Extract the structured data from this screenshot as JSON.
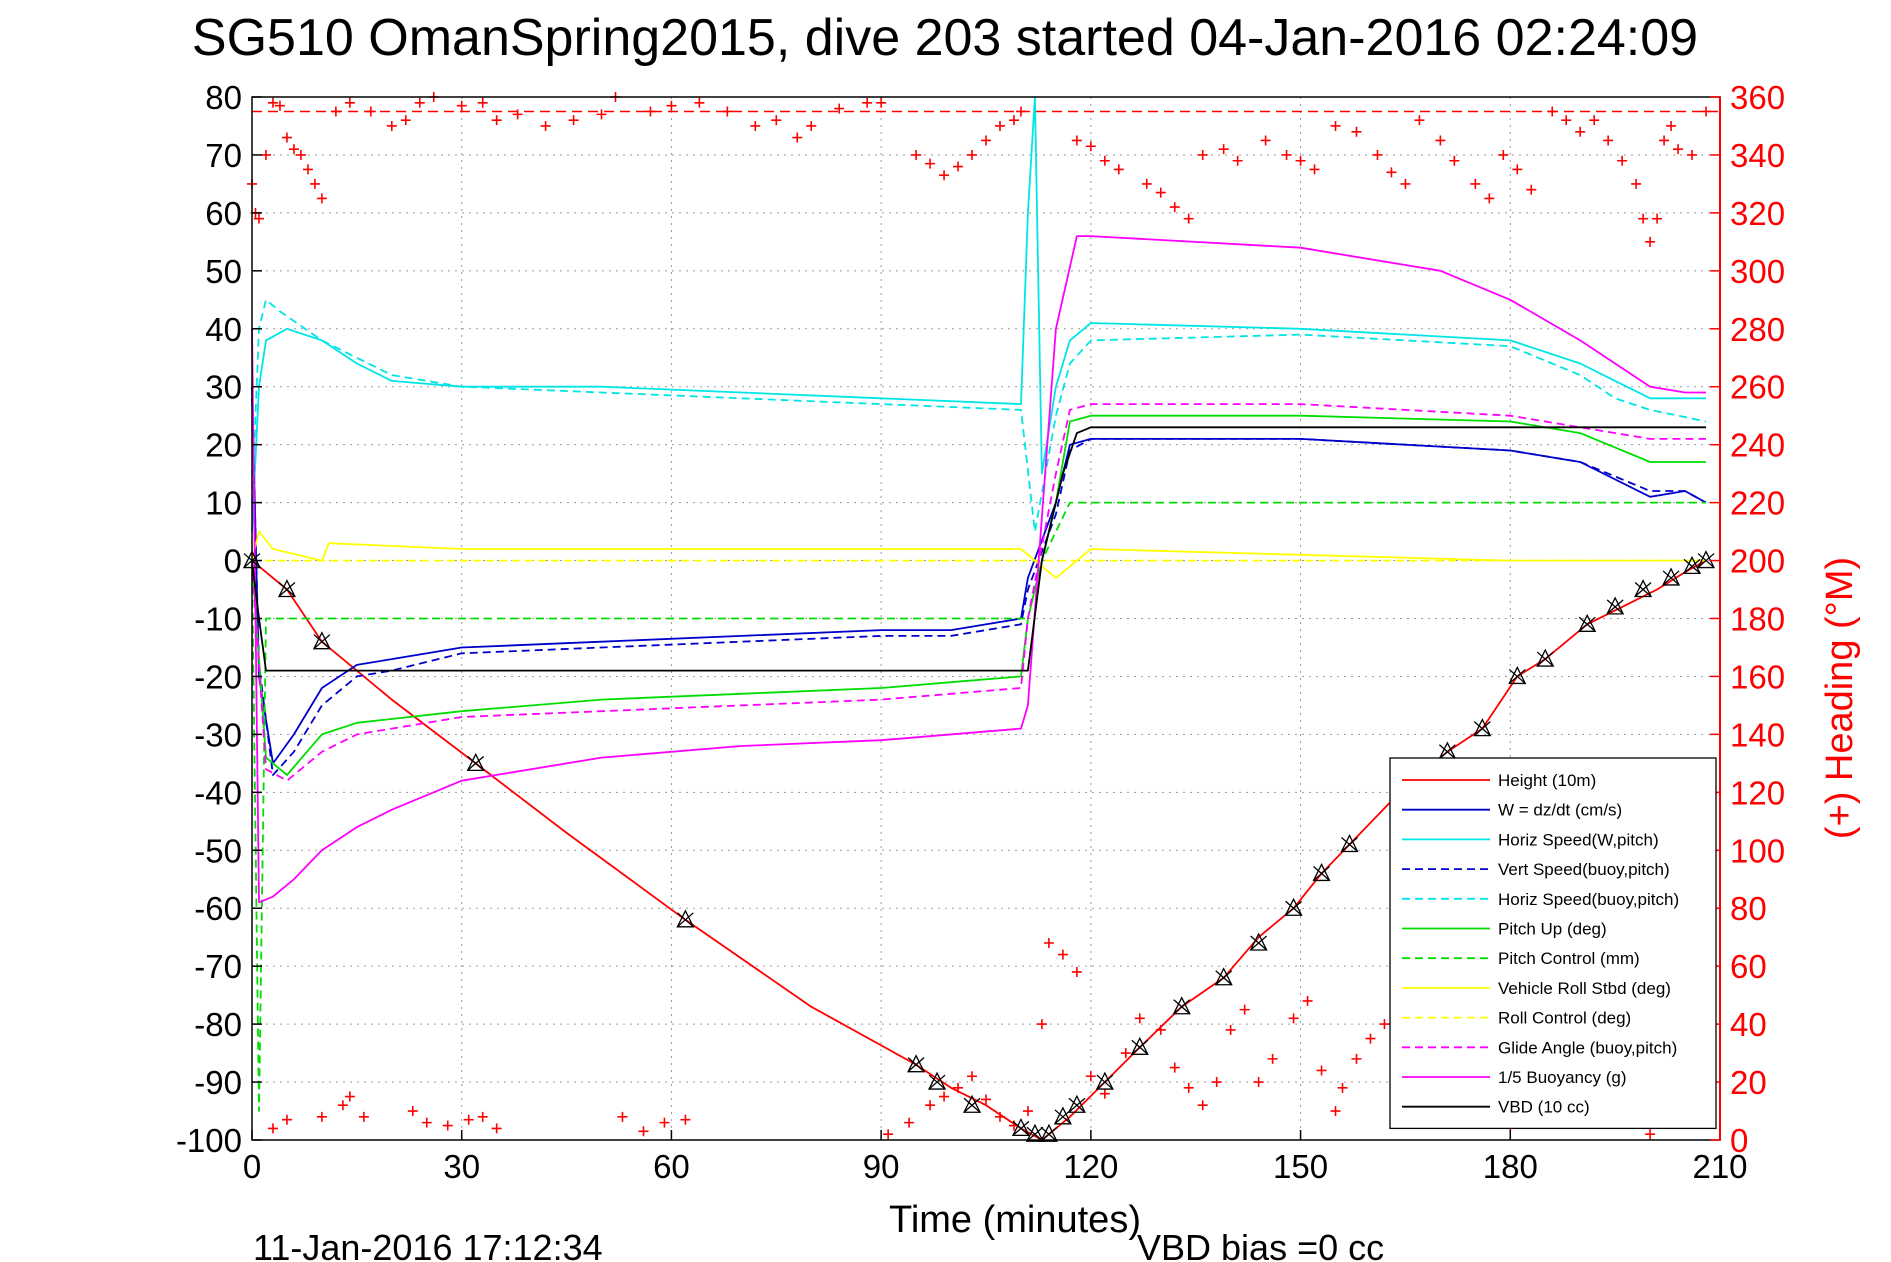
{
  "chart_data": {
    "type": "line",
    "title": "SG510 OmanSpring2015, dive 203 started 04-Jan-2016 02:24:09",
    "xlabel": "Time (minutes)",
    "ylabel_right": "(+) Heading (°M)",
    "xlim": [
      0,
      210
    ],
    "ylim": [
      -100,
      80
    ],
    "ylim_right": [
      0,
      360
    ],
    "x_ticks": [
      "0",
      "30",
      "60",
      "90",
      "120",
      "150",
      "180",
      "210"
    ],
    "y_ticks": [
      "80",
      "70",
      "60",
      "50",
      "40",
      "30",
      "20",
      "10",
      "0",
      "-10",
      "-20",
      "-30",
      "-40",
      "-50",
      "-60",
      "-70",
      "-80",
      "-90",
      "-100"
    ],
    "y_ticks_right": [
      "360",
      "340",
      "320",
      "300",
      "280",
      "260",
      "240",
      "220",
      "200",
      "180",
      "160",
      "140",
      "120",
      "100",
      "80",
      "60",
      "40",
      "20",
      "0"
    ],
    "grid": true,
    "legend_position": "lower-right",
    "footer_left": "11-Jan-2016 17:12:34",
    "footer_right": "VBD bias =0 cc",
    "heading_ref_line": 355,
    "series": [
      {
        "name": "Height (10m)",
        "color": "#ff0000",
        "style": "solid",
        "x": [
          0,
          5,
          10,
          20,
          32,
          45,
          62,
          80,
          95,
          100,
          105,
          110,
          113,
          117,
          122,
          127,
          133,
          139,
          144,
          149,
          153,
          157,
          165,
          171,
          176,
          181,
          185,
          191,
          196,
          201,
          205,
          208
        ],
        "y": [
          0,
          -5,
          -14,
          -24,
          -35,
          -47,
          -62,
          -77,
          -87,
          -91,
          -94,
          -98,
          -100,
          -96,
          -90,
          -84,
          -77,
          -72,
          -65,
          -60,
          -54,
          -49,
          -39,
          -33,
          -29,
          -20,
          -17,
          -11,
          -8,
          -5,
          -2,
          0
        ]
      },
      {
        "name": "W = dz/dt (cm/s)",
        "color": "#0000cc",
        "style": "solid",
        "x": [
          0,
          1,
          3,
          6,
          10,
          15,
          20,
          30,
          50,
          70,
          90,
          100,
          110,
          111,
          115,
          117,
          120,
          150,
          180,
          190,
          200,
          205,
          208
        ],
        "y": [
          30,
          -20,
          -35,
          -30,
          -22,
          -18,
          -17,
          -15,
          -14,
          -13,
          -12,
          -12,
          -10,
          -3,
          10,
          20,
          21,
          21,
          19,
          17,
          11,
          12,
          10
        ]
      },
      {
        "name": "Horiz Speed(W,pitch)",
        "color": "#00e5e5",
        "style": "solid",
        "x": [
          0,
          1,
          2,
          5,
          10,
          15,
          20,
          30,
          50,
          70,
          90,
          110,
          111,
          112,
          113,
          115,
          117,
          120,
          150,
          180,
          190,
          195,
          200,
          208
        ],
        "y": [
          5,
          30,
          38,
          40,
          38,
          34,
          31,
          30,
          30,
          29,
          28,
          27,
          60,
          80,
          15,
          30,
          38,
          41,
          40,
          38,
          34,
          31,
          28,
          28
        ]
      },
      {
        "name": "Vert Speed(buoy,pitch)",
        "color": "#0000cc",
        "style": "dashed",
        "x": [
          0,
          1,
          3,
          6,
          10,
          15,
          20,
          30,
          50,
          70,
          90,
          100,
          110,
          111,
          115,
          117,
          120,
          150,
          180,
          190,
          200,
          205,
          208
        ],
        "y": [
          28,
          -18,
          -37,
          -33,
          -25,
          -20,
          -19,
          -16,
          -15,
          -14,
          -13,
          -13,
          -11,
          -5,
          8,
          19,
          21,
          21,
          19,
          17,
          12,
          12,
          10
        ]
      },
      {
        "name": "Horiz Speed(buoy,pitch)",
        "color": "#00e5e5",
        "style": "dashed",
        "x": [
          0,
          1,
          2,
          4,
          10,
          15,
          20,
          30,
          50,
          70,
          90,
          110,
          112,
          115,
          117,
          120,
          150,
          180,
          190,
          195,
          200,
          208
        ],
        "y": [
          10,
          40,
          45,
          43,
          38,
          35,
          32,
          30,
          29,
          28,
          27,
          26,
          5,
          25,
          34,
          38,
          39,
          37,
          32,
          28,
          26,
          24
        ]
      },
      {
        "name": "Pitch Up (deg)",
        "color": "#00dd00",
        "style": "solid",
        "x": [
          0,
          2,
          5,
          10,
          15,
          30,
          50,
          70,
          90,
          100,
          110,
          111,
          115,
          117,
          120,
          150,
          180,
          190,
          200,
          208
        ],
        "y": [
          0,
          -34,
          -37,
          -30,
          -28,
          -26,
          -24,
          -23,
          -22,
          -21,
          -20,
          -10,
          10,
          24,
          25,
          25,
          24,
          22,
          17,
          17
        ]
      },
      {
        "name": "Pitch Control (mm)",
        "color": "#00dd00",
        "style": "dashed",
        "x": [
          0,
          1,
          2,
          110,
          111,
          113,
          115,
          117,
          120,
          208
        ],
        "y": [
          0,
          -95,
          -10,
          -10,
          -10,
          0,
          5,
          10,
          10,
          10
        ]
      },
      {
        "name": "Vehicle Roll Stbd (deg)",
        "color": "#ffff00",
        "style": "solid",
        "x": [
          0,
          1,
          3,
          10,
          11,
          30,
          60,
          90,
          110,
          112,
          115,
          120,
          150,
          180,
          200,
          208
        ],
        "y": [
          0,
          5,
          2,
          0,
          3,
          2,
          2,
          2,
          2,
          0,
          -3,
          2,
          1,
          0,
          0,
          0
        ]
      },
      {
        "name": "Roll Control (deg)",
        "color": "#ffff00",
        "style": "dashed",
        "x": [
          0,
          2,
          5,
          110,
          112,
          208
        ],
        "y": [
          0,
          0,
          0,
          0,
          0,
          0
        ]
      },
      {
        "name": "Glide Angle (buoy,pitch)",
        "color": "#ff00ff",
        "style": "dashed",
        "x": [
          0,
          2,
          5,
          10,
          15,
          30,
          50,
          70,
          90,
          100,
          110,
          111,
          115,
          117,
          120,
          150,
          180,
          190,
          200,
          208
        ],
        "y": [
          0,
          -36,
          -38,
          -33,
          -30,
          -27,
          -26,
          -25,
          -24,
          -23,
          -22,
          -10,
          15,
          26,
          27,
          27,
          25,
          23,
          21,
          21
        ]
      },
      {
        "name": "1/5 Buoyancy (g)",
        "color": "#ff00ff",
        "style": "solid",
        "x": [
          0,
          1,
          3,
          6,
          10,
          15,
          20,
          30,
          50,
          70,
          90,
          110,
          111,
          115,
          118,
          120,
          150,
          170,
          180,
          190,
          195,
          200,
          205,
          208
        ],
        "y": [
          40,
          -59,
          -58,
          -55,
          -50,
          -46,
          -43,
          -38,
          -34,
          -32,
          -31,
          -29,
          -25,
          40,
          56,
          56,
          54,
          50,
          45,
          38,
          34,
          30,
          29,
          29
        ]
      },
      {
        "name": "VBD (10 cc)",
        "color": "#000000",
        "style": "solid",
        "x": [
          0,
          1,
          2,
          110,
          111,
          113,
          116,
          118,
          120,
          208
        ],
        "y": [
          0,
          -10,
          -19,
          -19,
          -19,
          0,
          15,
          22,
          23,
          23
        ]
      }
    ],
    "heading": {
      "name": "(+) Heading",
      "marker": "+",
      "color": "#ff0000",
      "points": [
        [
          0,
          330
        ],
        [
          0.5,
          320
        ],
        [
          1,
          318
        ],
        [
          2,
          340
        ],
        [
          3,
          358
        ],
        [
          4,
          357
        ],
        [
          5,
          346
        ],
        [
          6,
          342
        ],
        [
          7,
          340
        ],
        [
          8,
          335
        ],
        [
          9,
          330
        ],
        [
          10,
          325
        ],
        [
          12,
          355
        ],
        [
          14,
          358
        ],
        [
          17,
          355
        ],
        [
          20,
          350
        ],
        [
          22,
          352
        ],
        [
          24,
          358
        ],
        [
          26,
          360
        ],
        [
          30,
          357
        ],
        [
          33,
          358
        ],
        [
          35,
          352
        ],
        [
          38,
          354
        ],
        [
          42,
          350
        ],
        [
          46,
          352
        ],
        [
          50,
          354
        ],
        [
          52,
          360
        ],
        [
          57,
          355
        ],
        [
          60,
          357
        ],
        [
          64,
          358
        ],
        [
          68,
          355
        ],
        [
          72,
          350
        ],
        [
          75,
          352
        ],
        [
          78,
          346
        ],
        [
          80,
          350
        ],
        [
          84,
          356
        ],
        [
          88,
          358
        ],
        [
          90,
          358
        ],
        [
          95,
          340
        ],
        [
          97,
          337
        ],
        [
          99,
          333
        ],
        [
          101,
          336
        ],
        [
          103,
          340
        ],
        [
          105,
          345
        ],
        [
          107,
          350
        ],
        [
          109,
          352
        ],
        [
          110,
          355
        ],
        [
          118,
          345
        ],
        [
          120,
          343
        ],
        [
          122,
          338
        ],
        [
          124,
          335
        ],
        [
          128,
          330
        ],
        [
          130,
          327
        ],
        [
          132,
          322
        ],
        [
          134,
          318
        ],
        [
          136,
          340
        ],
        [
          139,
          342
        ],
        [
          141,
          338
        ],
        [
          145,
          345
        ],
        [
          148,
          340
        ],
        [
          150,
          338
        ],
        [
          152,
          335
        ],
        [
          155,
          350
        ],
        [
          158,
          348
        ],
        [
          161,
          340
        ],
        [
          163,
          334
        ],
        [
          165,
          330
        ],
        [
          167,
          352
        ],
        [
          170,
          345
        ],
        [
          172,
          338
        ],
        [
          175,
          330
        ],
        [
          177,
          325
        ],
        [
          179,
          340
        ],
        [
          181,
          335
        ],
        [
          183,
          328
        ],
        [
          186,
          355
        ],
        [
          188,
          352
        ],
        [
          190,
          348
        ],
        [
          192,
          352
        ],
        [
          194,
          345
        ],
        [
          196,
          338
        ],
        [
          198,
          330
        ],
        [
          199,
          318
        ],
        [
          200,
          310
        ],
        [
          201,
          318
        ],
        [
          202,
          345
        ],
        [
          203,
          350
        ],
        [
          204,
          342
        ],
        [
          206,
          340
        ],
        [
          208,
          355
        ],
        [
          3,
          4
        ],
        [
          5,
          7
        ],
        [
          10,
          8
        ],
        [
          13,
          12
        ],
        [
          14,
          15
        ],
        [
          16,
          8
        ],
        [
          23,
          10
        ],
        [
          25,
          6
        ],
        [
          28,
          5
        ],
        [
          31,
          7
        ],
        [
          33,
          8
        ],
        [
          35,
          4
        ],
        [
          53,
          8
        ],
        [
          56,
          3
        ],
        [
          59,
          6
        ],
        [
          62,
          7
        ],
        [
          91,
          2
        ],
        [
          94,
          6
        ],
        [
          97,
          12
        ],
        [
          99,
          15
        ],
        [
          101,
          18
        ],
        [
          103,
          22
        ],
        [
          105,
          14
        ],
        [
          107,
          8
        ],
        [
          109,
          5
        ],
        [
          111,
          10
        ],
        [
          113,
          40
        ],
        [
          114,
          68
        ],
        [
          116,
          64
        ],
        [
          118,
          58
        ],
        [
          120,
          22
        ],
        [
          122,
          16
        ],
        [
          125,
          30
        ],
        [
          127,
          42
        ],
        [
          130,
          38
        ],
        [
          132,
          25
        ],
        [
          134,
          18
        ],
        [
          136,
          12
        ],
        [
          138,
          20
        ],
        [
          140,
          38
        ],
        [
          142,
          45
        ],
        [
          144,
          20
        ],
        [
          146,
          28
        ],
        [
          149,
          42
        ],
        [
          151,
          48
        ],
        [
          153,
          24
        ],
        [
          155,
          10
        ],
        [
          156,
          18
        ],
        [
          158,
          28
        ],
        [
          160,
          35
        ],
        [
          162,
          40
        ],
        [
          164,
          18
        ],
        [
          166,
          28
        ],
        [
          168,
          15
        ],
        [
          170,
          22
        ],
        [
          172,
          45
        ],
        [
          174,
          30
        ],
        [
          176,
          20
        ],
        [
          178,
          12
        ],
        [
          180,
          5
        ],
        [
          182,
          25
        ],
        [
          184,
          32
        ],
        [
          186,
          10
        ],
        [
          188,
          28
        ],
        [
          190,
          38
        ],
        [
          192,
          12
        ],
        [
          194,
          28
        ],
        [
          196,
          10
        ],
        [
          198,
          20
        ],
        [
          200,
          2
        ],
        [
          202,
          14
        ],
        [
          204,
          22
        ],
        [
          206,
          25
        ],
        [
          208,
          22
        ]
      ]
    },
    "turn_markers": [
      [
        0,
        0
      ],
      [
        5,
        -5
      ],
      [
        10,
        -14
      ],
      [
        32,
        -35
      ],
      [
        62,
        -62
      ],
      [
        95,
        -87
      ],
      [
        98,
        -90
      ],
      [
        103,
        -94
      ],
      [
        110,
        -98
      ],
      [
        112,
        -99
      ],
      [
        114,
        -99
      ],
      [
        116,
        -96
      ],
      [
        118,
        -94
      ],
      [
        122,
        -90
      ],
      [
        127,
        -84
      ],
      [
        133,
        -77
      ],
      [
        139,
        -72
      ],
      [
        144,
        -66
      ],
      [
        149,
        -60
      ],
      [
        153,
        -54
      ],
      [
        157,
        -49
      ],
      [
        171,
        -33
      ],
      [
        176,
        -29
      ],
      [
        181,
        -20
      ],
      [
        185,
        -17
      ],
      [
        191,
        -11
      ],
      [
        195,
        -8
      ],
      [
        199,
        -5
      ],
      [
        203,
        -3
      ],
      [
        206,
        -1
      ],
      [
        208,
        0
      ]
    ]
  }
}
